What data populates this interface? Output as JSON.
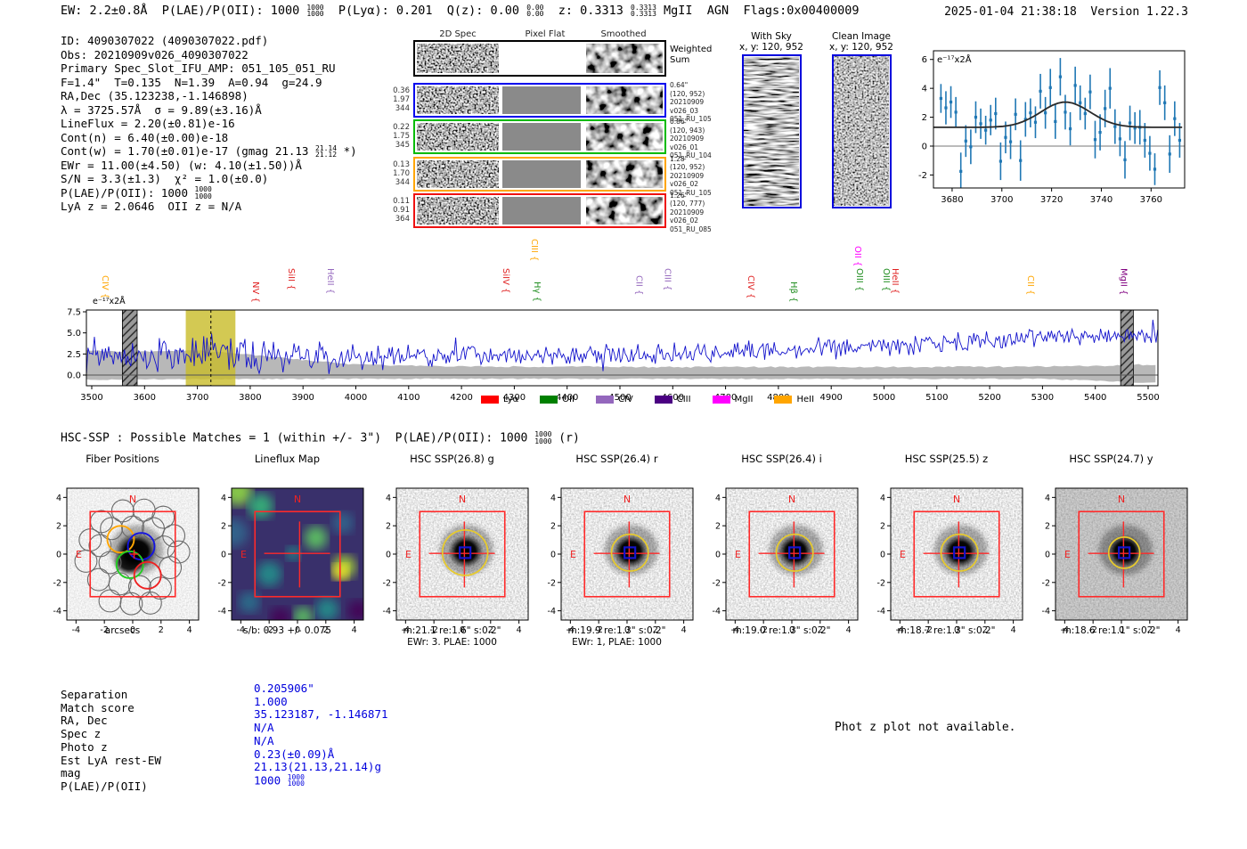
{
  "header": {
    "left_segments": [
      {
        "t": "EW: 2.2±0.8Å  P(LAE)/P(OII): 1000 "
      },
      {
        "f": [
          "1000",
          "1000"
        ]
      },
      {
        "t": "  P(Lyα): 0.201  Q(z): 0.00 "
      },
      {
        "f": [
          "0.00",
          "0.00"
        ]
      },
      {
        "t": "  z: 0.3313 "
      },
      {
        "f": [
          "0.3313",
          "0.3313"
        ]
      },
      {
        "t": " MgII  AGN  Flags:0x00400009"
      }
    ],
    "datetime": "2025-01-04 21:38:18  Version 1.22.3"
  },
  "info_block": {
    "lines": [
      [
        {
          "t": "ID: 4090307022 (4090307022.pdf)"
        }
      ],
      [
        {
          "t": "Obs: 20210909v026_4090307022"
        }
      ],
      [
        {
          "t": "Primary Spec_Slot_IFU_AMP: 051_105_051_RU"
        }
      ],
      [
        {
          "t": "F=1.4\"  T=0.135  N=1.39  A=0.94  g=24.9"
        }
      ],
      [
        {
          "t": "RA,Dec (35.123238,-1.146898)"
        }
      ],
      [
        {
          "t": "λ = 3725.57Å  σ = 9.89(±3.16)Å"
        }
      ],
      [
        {
          "t": "LineFlux = 2.20(±0.81)e-16"
        }
      ],
      [
        {
          "t": "Cont(n) = 6.40(±0.00)e-18"
        }
      ],
      [
        {
          "t": "Cont(w) = 1.70(±0.01)e-17 (gmag 21.13 "
        },
        {
          "f": [
            "21.14",
            "21.12"
          ]
        },
        {
          "t": " *)"
        }
      ],
      [
        {
          "t": "EWr = 11.00(±4.50) (w: 4.10(±1.50))Å"
        }
      ],
      [
        {
          "t": "S/N = 3.3(±1.3)  χ² = 1.0(±0.0)"
        }
      ],
      [
        {
          "t": "P(LAE)/P(OII): 1000 "
        },
        {
          "f": [
            "1000",
            "1000"
          ]
        }
      ],
      [
        {
          "t": "LyA z = 2.0646  OII z = N/A"
        }
      ]
    ]
  },
  "spec2d": {
    "col_headers": [
      "2D Spec",
      "Pixel Flat",
      "Smoothed"
    ],
    "weighted_sum_label": [
      "Weighted",
      "Sum"
    ],
    "rows": [
      {
        "color": "#0000ee",
        "left": [
          "0.36",
          "1.97",
          "344"
        ],
        "right": [
          "0.64\"",
          "(120, 952)",
          "20210909",
          "v026_03",
          "051_RU_105"
        ]
      },
      {
        "color": "#00bb00",
        "left": [
          "0.22",
          "1.75",
          "345"
        ],
        "right": [
          "0.86\"",
          "(120, 943)",
          "20210909",
          "v026_01",
          "051_RU_104"
        ]
      },
      {
        "color": "#ffa500",
        "left": [
          "0.13",
          "1.70",
          "344"
        ],
        "right": [
          "1.28\"",
          "(120, 952)",
          "20210909",
          "v026_02",
          "051_RU_105"
        ]
      },
      {
        "color": "#ee1111",
        "left": [
          "0.11",
          "0.91",
          "364"
        ],
        "right": [
          "1.26\"",
          "(120, 777)",
          "20210909",
          "v026_02",
          "051_RU_085"
        ]
      }
    ]
  },
  "sky_panels": [
    {
      "title": "With Sky",
      "subtitle": "x, y: 120, 952"
    },
    {
      "title": "Clean Image",
      "subtitle": "x, y: 120, 952"
    }
  ],
  "hsc_line_segments": [
    {
      "t": "HSC-SSP : Possible Matches = 1 (within +/- 3\")  P(LAE)/P(OII): 1000 "
    },
    {
      "f": [
        "1000",
        "1000"
      ]
    },
    {
      "t": " (r)"
    }
  ],
  "panels_common": {
    "axis_ticks": [
      -4,
      -2,
      0,
      2,
      4
    ],
    "compass_n": "N",
    "compass_e": "E"
  },
  "panels": [
    {
      "title": "Fiber Positions",
      "type": "fiber",
      "captions": [
        "arcsecs"
      ]
    },
    {
      "title": "Lineflux Map",
      "type": "lineflux",
      "captions": [
        "s/b: 0.93 +/- 0.075"
      ]
    },
    {
      "title": "HSC SSP(26.8) g",
      "type": "hsc",
      "captions": [
        "m:21.1  re:1.6\"  s:0.2\"",
        "EWr: 3. PLAE: 1000"
      ],
      "circle_r": 1.6,
      "bg": "light"
    },
    {
      "title": "HSC SSP(26.4) r",
      "type": "hsc",
      "captions": [
        "m:19.9  re:1.3\"  s:0.2\"",
        "EWr: 1, PLAE: 1000"
      ],
      "circle_r": 1.3,
      "bg": "light"
    },
    {
      "title": "HSC SSP(26.4) i",
      "type": "hsc",
      "captions": [
        "m:19.0  re:1.3\"  s:0.2\""
      ],
      "circle_r": 1.3,
      "bg": "light"
    },
    {
      "title": "HSC SSP(25.5) z",
      "type": "hsc",
      "captions": [
        "m:18.7  re:1.3\"  s:0.2\""
      ],
      "circle_r": 1.3,
      "bg": "light"
    },
    {
      "title": "HSC SSP(24.7) y",
      "type": "hsc",
      "captions": [
        "m:18.6  re:1.1\"  s:0.2\""
      ],
      "circle_r": 1.1,
      "bg": "dark"
    }
  ],
  "match_table": {
    "rows": [
      {
        "label": "Separation",
        "value": [
          {
            "t": "0.205906\""
          }
        ]
      },
      {
        "label": "Match score",
        "value": [
          {
            "t": "1.000"
          }
        ]
      },
      {
        "label": "RA, Dec",
        "value": [
          {
            "t": "35.123187, -1.146871"
          }
        ]
      },
      {
        "label": "Spec z",
        "value": [
          {
            "t": "N/A"
          }
        ]
      },
      {
        "label": "Photo z",
        "value": [
          {
            "t": "N/A"
          }
        ]
      },
      {
        "label": "Est LyA rest-EW",
        "value": [
          {
            "t": "0.23(±0.09)Å"
          }
        ]
      },
      {
        "label": "mag",
        "value": [
          {
            "t": "21.13(21.13,21.14)g"
          }
        ]
      },
      {
        "label": "P(LAE)/P(OII)",
        "value": [
          {
            "t": "1000 "
          },
          {
            "f": [
              "1000",
              "1000"
            ]
          }
        ]
      }
    ]
  },
  "footer_note": "Phot z plot not available.",
  "chart_data": [
    {
      "id": "line_fit_plot",
      "type": "scatter",
      "unit_label": "e⁻¹⁷x2Å",
      "xlim": [
        3672.5,
        3773.5
      ],
      "ylim": [
        -2.9,
        6.6
      ],
      "xticks": [
        3680,
        3700,
        3720,
        3740,
        3760
      ],
      "yticks": [
        -2,
        0,
        2,
        4,
        6
      ],
      "marker_color": "#1f77b4",
      "fit_color": "#2a2a2a",
      "fit": {
        "center": 3725.57,
        "sigma": 9.89,
        "continuum": 1.3,
        "peak": 3.05
      },
      "points": [
        [
          3675.5,
          3.3,
          1.0
        ],
        [
          3677.5,
          2.65,
          1.15
        ],
        [
          3679.5,
          3.05,
          1.1
        ],
        [
          3681.5,
          2.35,
          1.05
        ],
        [
          3683.5,
          -1.75,
          1.3
        ],
        [
          3685.5,
          0.35,
          1.1
        ],
        [
          3687.5,
          -0.05,
          1.2
        ],
        [
          3689.5,
          2.0,
          1.1
        ],
        [
          3691.5,
          1.55,
          1.05
        ],
        [
          3693.5,
          1.1,
          1.0
        ],
        [
          3695.5,
          1.8,
          1.05
        ],
        [
          3697.5,
          2.25,
          1.1
        ],
        [
          3699.5,
          -1.05,
          1.3
        ],
        [
          3701.5,
          0.6,
          1.1
        ],
        [
          3703.5,
          0.3,
          1.2
        ],
        [
          3705.5,
          2.2,
          1.1
        ],
        [
          3707.5,
          -1.0,
          1.4
        ],
        [
          3709.5,
          1.85,
          1.2
        ],
        [
          3711.5,
          2.3,
          1.0
        ],
        [
          3713.5,
          1.65,
          1.1
        ],
        [
          3715.5,
          3.8,
          1.2
        ],
        [
          3717.5,
          2.3,
          1.1
        ],
        [
          3719.5,
          4.05,
          1.3
        ],
        [
          3721.5,
          1.7,
          1.2
        ],
        [
          3723.5,
          4.8,
          1.3
        ],
        [
          3725.5,
          2.35,
          1.2
        ],
        [
          3727.5,
          1.2,
          1.15
        ],
        [
          3729.5,
          4.2,
          1.3
        ],
        [
          3731.5,
          3.0,
          1.2
        ],
        [
          3733.5,
          2.25,
          1.1
        ],
        [
          3735.5,
          3.75,
          1.2
        ],
        [
          3737.5,
          0.45,
          1.3
        ],
        [
          3739.5,
          0.95,
          1.25
        ],
        [
          3741.5,
          2.6,
          1.3
        ],
        [
          3743.5,
          4.0,
          1.4
        ],
        [
          3745.5,
          1.35,
          1.2
        ],
        [
          3747.5,
          0.5,
          1.2
        ],
        [
          3749.5,
          -0.95,
          1.3
        ],
        [
          3751.5,
          1.6,
          1.2
        ],
        [
          3753.5,
          1.25,
          1.1
        ],
        [
          3755.5,
          1.3,
          1.2
        ],
        [
          3757.5,
          0.4,
          1.2
        ],
        [
          3759.5,
          -0.5,
          1.2
        ],
        [
          3761.5,
          -1.6,
          1.1
        ],
        [
          3763.5,
          4.05,
          1.2
        ],
        [
          3765.5,
          3.0,
          1.2
        ],
        [
          3767.5,
          -0.55,
          1.3
        ],
        [
          3769.5,
          1.9,
          1.2
        ],
        [
          3771.5,
          0.4,
          1.2
        ]
      ]
    },
    {
      "id": "full_spectrum",
      "type": "line",
      "unit_label": "e⁻¹⁷x2Å",
      "xlim": [
        3490,
        5519
      ],
      "ylim": [
        -1.27,
        7.7
      ],
      "xticks": [
        3500,
        3600,
        3700,
        3800,
        3900,
        4000,
        4100,
        4200,
        4300,
        4400,
        4500,
        4600,
        4700,
        4800,
        4900,
        5000,
        5100,
        5200,
        5300,
        5400,
        5500
      ],
      "yticks": [
        "0.0",
        "2.5",
        "5.0",
        "7.5"
      ],
      "line_color": "#1212cc",
      "error_band_color": "#ababab",
      "highlight_band": {
        "color": "#c8bc28",
        "range": [
          3678,
          3772
        ]
      },
      "hatched_bands": [
        [
          3558,
          3586
        ],
        [
          5448,
          5472
        ]
      ],
      "detection_line": 3725.57,
      "trend": [
        [
          3490,
          2.4
        ],
        [
          3600,
          2.3
        ],
        [
          3690,
          2.6
        ],
        [
          3725,
          3.2
        ],
        [
          3765,
          2.5
        ],
        [
          3850,
          2.2
        ],
        [
          3960,
          2.0
        ],
        [
          4050,
          2.1
        ],
        [
          4200,
          2.35
        ],
        [
          4400,
          2.4
        ],
        [
          4600,
          2.5
        ],
        [
          4800,
          2.9
        ],
        [
          5000,
          3.4
        ],
        [
          5150,
          3.9
        ],
        [
          5300,
          4.4
        ],
        [
          5450,
          4.8
        ],
        [
          5519,
          4.6
        ]
      ],
      "noise_amp": [
        [
          3490,
          1.45
        ],
        [
          3950,
          1.35
        ],
        [
          4050,
          1.05
        ],
        [
          4600,
          0.95
        ],
        [
          5519,
          0.8
        ]
      ],
      "err_upper": [
        [
          3490,
          3.0
        ],
        [
          3560,
          2.7
        ],
        [
          3640,
          2.9
        ],
        [
          3700,
          2.9
        ],
        [
          3760,
          2.6
        ],
        [
          3820,
          2.3
        ],
        [
          3900,
          1.8
        ],
        [
          3980,
          1.35
        ],
        [
          4100,
          1.1
        ],
        [
          4300,
          1.0
        ],
        [
          4600,
          0.95
        ],
        [
          5000,
          0.95
        ],
        [
          5300,
          1.0
        ],
        [
          5430,
          1.1
        ],
        [
          5470,
          1.25
        ],
        [
          5519,
          1.15
        ]
      ],
      "err_lower": [
        [
          3490,
          -0.55
        ],
        [
          3600,
          -0.5
        ],
        [
          4000,
          -0.45
        ],
        [
          5300,
          -0.45
        ],
        [
          5440,
          -0.75
        ],
        [
          5480,
          -0.9
        ],
        [
          5519,
          -0.8
        ]
      ],
      "line_labels": [
        {
          "name": "CIV",
          "wavelength": 3525,
          "color": "#ffa500"
        },
        {
          "name": "NV",
          "wavelength": 3810,
          "color": "#e02222"
        },
        {
          "name": "SiII",
          "wavelength": 3878,
          "color": "#e02222"
        },
        {
          "name": "HeII",
          "wavelength": 3952,
          "color": "#9467bd"
        },
        {
          "name": "SiIV",
          "wavelength": 4284,
          "color": "#e02222"
        },
        {
          "name": "CIII",
          "wavelength": 4338,
          "color": "#ffa500",
          "high": true
        },
        {
          "name": "Hγ",
          "wavelength": 4343,
          "color": "#1e8c1e"
        },
        {
          "name": "CII",
          "wavelength": 4536,
          "color": "#9467bd"
        },
        {
          "name": "CIII",
          "wavelength": 4590,
          "color": "#9467bd"
        },
        {
          "name": "CIV",
          "wavelength": 4748,
          "color": "#e02222"
        },
        {
          "name": "Hβ",
          "wavelength": 4829,
          "color": "#1e8c1e"
        },
        {
          "name": "OII",
          "wavelength": 4950,
          "color": "#ff00ff",
          "high": true
        },
        {
          "name": "OIII",
          "wavelength": 4954,
          "color": "#1e8c1e"
        },
        {
          "name": "OIII",
          "wavelength": 5004,
          "color": "#1e8c1e"
        },
        {
          "name": "HeII",
          "wavelength": 5021,
          "color": "#e02222"
        },
        {
          "name": "CII",
          "wavelength": 5277,
          "color": "#ffa500"
        },
        {
          "name": "MgII",
          "wavelength": 5454,
          "color": "#800080"
        }
      ],
      "legend": [
        {
          "label": "Lyα",
          "color": "#ff0000"
        },
        {
          "label": "OII",
          "color": "#008000"
        },
        {
          "label": "CIV",
          "color": "#9467bd"
        },
        {
          "label": "CIII",
          "color": "#4b0082"
        },
        {
          "label": "MgII",
          "color": "#ff00ff"
        },
        {
          "label": "HeII",
          "color": "#ffa500"
        }
      ]
    }
  ]
}
